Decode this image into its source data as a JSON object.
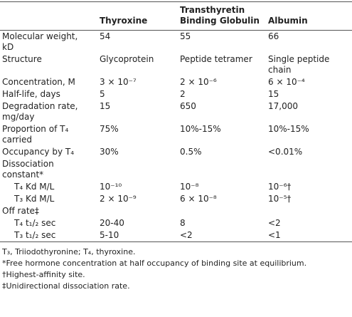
{
  "table": {
    "header": [
      "Thyroxine",
      "Transthyretin Binding Globulin",
      "Albumin"
    ],
    "rows": [
      [
        "Molecular weight, kD",
        "54",
        "55",
        "66"
      ],
      [
        "Structure",
        "Glycoprotein",
        "Peptide tetramer",
        "Single peptide chain"
      ],
      [
        "Concentration, M",
        "3 × 10⁻⁷",
        "2 × 10⁻⁶",
        "6 × 10⁻⁴"
      ],
      [
        "Half-life, days",
        "5",
        "2",
        "15"
      ],
      [
        "Degradation rate, mg/day",
        "15",
        "650",
        "17,000"
      ],
      [
        "Proportion of T₄ carried",
        "75%",
        "10%-15%",
        "10%-15%"
      ],
      [
        "Occupancy by T₄",
        "30%",
        "0.5%",
        "<0.01%"
      ],
      [
        "Dissociation constant*"
      ],
      [
        "T₄ Kd M/L",
        "10⁻¹⁰",
        "10⁻⁸",
        "10⁻⁶†"
      ],
      [
        "T₃ Kd M/L",
        "2 × 10⁻⁹",
        "6 × 10⁻⁸",
        "10⁻⁵†"
      ],
      [
        "Off rate‡"
      ],
      [
        "T₄ t₁/₂ sec",
        "20-40",
        "8",
        "<2"
      ],
      [
        "T₃ t₁/₂ sec",
        "5-10",
        "<2",
        "<1"
      ]
    ]
  },
  "footnotes": [
    "T₃, Triiodothyronine; T₄, thyroxine.",
    "*Free hormone concentration at half occupancy of binding site at equilibrium.",
    "†Highest-affinity site.",
    "‡Unidirectional dissociation rate."
  ]
}
